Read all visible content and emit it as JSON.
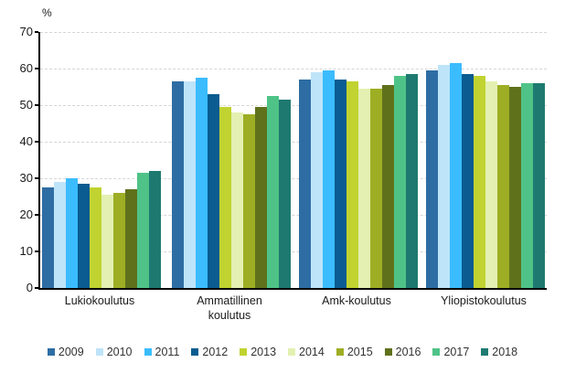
{
  "chart_data": {
    "type": "bar",
    "title": "",
    "ylabel": "%",
    "xlabel": "",
    "ylim": [
      0,
      70
    ],
    "yticks": [
      0,
      10,
      20,
      30,
      40,
      50,
      60,
      70
    ],
    "grid": true,
    "legend_position": "bottom",
    "categories": [
      "Lukiokoulutus",
      "Ammatillinen koulutus",
      "Amk-koulutus",
      "Yliopistokoulutus"
    ],
    "series": [
      {
        "name": "2009",
        "color": "#2E6DA4",
        "values": [
          27.5,
          56.5,
          57.0,
          59.5
        ]
      },
      {
        "name": "2010",
        "color": "#BEE4FA",
        "values": [
          29.0,
          56.5,
          59.0,
          61.0
        ]
      },
      {
        "name": "2011",
        "color": "#3BBCFF",
        "values": [
          30.0,
          57.5,
          59.5,
          61.5
        ]
      },
      {
        "name": "2012",
        "color": "#0A5C91",
        "values": [
          28.5,
          53.0,
          57.0,
          58.5
        ]
      },
      {
        "name": "2013",
        "color": "#C0D330",
        "values": [
          27.5,
          49.5,
          56.5,
          58.0
        ]
      },
      {
        "name": "2014",
        "color": "#E3F0B1",
        "values": [
          25.5,
          48.0,
          54.5,
          56.5
        ]
      },
      {
        "name": "2015",
        "color": "#9DAE24",
        "values": [
          26.0,
          47.5,
          54.5,
          55.5
        ]
      },
      {
        "name": "2016",
        "color": "#60711C",
        "values": [
          27.0,
          49.5,
          55.5,
          55.0
        ]
      },
      {
        "name": "2017",
        "color": "#4FC387",
        "values": [
          31.5,
          52.5,
          58.0,
          56.0
        ]
      },
      {
        "name": "2018",
        "color": "#1E7A70",
        "values": [
          32.0,
          51.5,
          58.5,
          56.0
        ]
      }
    ],
    "colors": {
      "axis": "#000000",
      "gridline": "#d6d6d6",
      "text": "#1a1a1a",
      "legend_text": "#333333"
    }
  }
}
